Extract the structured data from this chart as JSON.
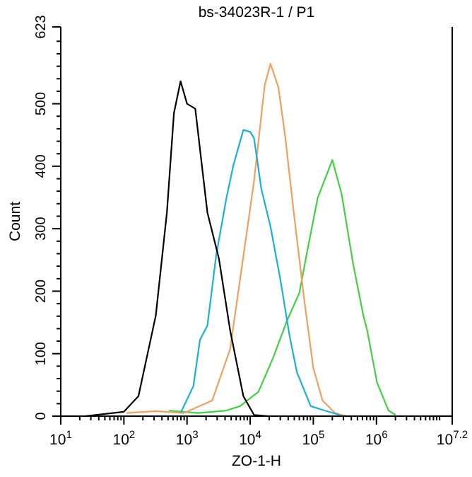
{
  "chart_data": {
    "type": "line",
    "title": "bs-34023R-1 / P1",
    "xlabel": "ZO-1-H",
    "ylabel": "Count",
    "log": "x",
    "grid": false,
    "legend": false,
    "marker": "none",
    "line_style": "solid",
    "xlim": [
      10,
      15848932
    ],
    "ylim": [
      0,
      623
    ],
    "xticks": [
      {
        "value": 10,
        "label": "10$^{1}$"
      },
      {
        "value": 20,
        "label": null
      },
      {
        "value": 30,
        "label": null
      },
      {
        "value": 40,
        "label": null
      },
      {
        "value": 50,
        "label": null
      },
      {
        "value": 60,
        "label": null
      },
      {
        "value": 70,
        "label": null
      },
      {
        "value": 80,
        "label": null
      },
      {
        "value": 90,
        "label": null
      },
      {
        "value": 100,
        "label": "10$^{2}$"
      },
      {
        "value": 200,
        "label": null
      },
      {
        "value": 300,
        "label": null
      },
      {
        "value": 400,
        "label": null
      },
      {
        "value": 500,
        "label": null
      },
      {
        "value": 600,
        "label": null
      },
      {
        "value": 700,
        "label": null
      },
      {
        "value": 800,
        "label": null
      },
      {
        "value": 900,
        "label": null
      },
      {
        "value": 1000,
        "label": "10$^{3}$"
      },
      {
        "value": 2000,
        "label": null
      },
      {
        "value": 3000,
        "label": null
      },
      {
        "value": 4000,
        "label": null
      },
      {
        "value": 5000,
        "label": null
      },
      {
        "value": 6000,
        "label": null
      },
      {
        "value": 7000,
        "label": null
      },
      {
        "value": 8000,
        "label": null
      },
      {
        "value": 9000,
        "label": null
      },
      {
        "value": 10000,
        "label": "10$^{4}$"
      },
      {
        "value": 20000,
        "label": null
      },
      {
        "value": 30000,
        "label": null
      },
      {
        "value": 40000,
        "label": null
      },
      {
        "value": 50000,
        "label": null
      },
      {
        "value": 60000,
        "label": null
      },
      {
        "value": 70000,
        "label": null
      },
      {
        "value": 80000,
        "label": null
      },
      {
        "value": 90000,
        "label": null
      },
      {
        "value": 100000,
        "label": "10$^{5}$"
      },
      {
        "value": 200000,
        "label": null
      },
      {
        "value": 300000,
        "label": null
      },
      {
        "value": 400000,
        "label": null
      },
      {
        "value": 500000,
        "label": null
      },
      {
        "value": 600000,
        "label": null
      },
      {
        "value": 700000,
        "label": null
      },
      {
        "value": 800000,
        "label": null
      },
      {
        "value": 900000,
        "label": null
      },
      {
        "value": 1000000,
        "label": "10$^{6}$"
      },
      {
        "value": 2000000,
        "label": null
      },
      {
        "value": 3000000,
        "label": null
      },
      {
        "value": 4000000,
        "label": null
      },
      {
        "value": 5000000,
        "label": null
      },
      {
        "value": 6000000,
        "label": null
      },
      {
        "value": 7000000,
        "label": null
      },
      {
        "value": 8000000,
        "label": null
      },
      {
        "value": 9000000,
        "label": null
      },
      {
        "value": 10000000,
        "label": null
      },
      {
        "value": 15848932,
        "label": "10$^{7.2}$"
      }
    ],
    "yticks": [
      0,
      {
        "value": 20,
        "label": null
      },
      {
        "value": 40,
        "label": null
      },
      {
        "value": 60,
        "label": null
      },
      {
        "value": 80,
        "label": null
      },
      100,
      {
        "value": 120,
        "label": null
      },
      {
        "value": 140,
        "label": null
      },
      {
        "value": 160,
        "label": null
      },
      {
        "value": 180,
        "label": null
      },
      200,
      {
        "value": 220,
        "label": null
      },
      {
        "value": 240,
        "label": null
      },
      {
        "value": 260,
        "label": null
      },
      {
        "value": 280,
        "label": null
      },
      300,
      {
        "value": 320,
        "label": null
      },
      {
        "value": 340,
        "label": null
      },
      {
        "value": 360,
        "label": null
      },
      {
        "value": 380,
        "label": null
      },
      400,
      {
        "value": 420,
        "label": null
      },
      {
        "value": 440,
        "label": null
      },
      {
        "value": 460,
        "label": null
      },
      {
        "value": 480,
        "label": null
      },
      500,
      {
        "value": 520,
        "label": null
      },
      {
        "value": 540,
        "label": null
      },
      {
        "value": 560,
        "label": null
      },
      {
        "value": 580,
        "label": null
      },
      {
        "value": 600,
        "label": null
      },
      623
    ],
    "series": [
      {
        "color": "#000000",
        "x": [
          24,
          100,
          170,
          320,
          480,
          620,
          790,
          1000,
          1350,
          2100,
          3200,
          4800,
          7800,
          11500,
          19500
        ],
        "values": [
          0,
          7,
          32,
          161,
          326,
          485,
          536,
          500,
          492,
          326,
          252,
          138,
          32,
          2,
          0
        ]
      },
      {
        "color": "#1ab0d8",
        "x": [
          790,
          1260,
          1600,
          2100,
          2900,
          4200,
          5400,
          7800,
          10000,
          11500,
          15000,
          21000,
          30000,
          42000,
          55000,
          91000,
          150000,
          260000
        ],
        "values": [
          5,
          48,
          122,
          145,
          258,
          349,
          401,
          458,
          455,
          445,
          364,
          303,
          219,
          129,
          70,
          16,
          9,
          2
        ]
      },
      {
        "color": "#f0a060",
        "x": [
          110,
          320,
          890,
          2500,
          4800,
          7800,
          11500,
          17000,
          21000,
          28000,
          36000,
          49000,
          71000,
          100000,
          140000,
          220000,
          330000
        ],
        "values": [
          5,
          8,
          5,
          25,
          107,
          256,
          376,
          530,
          564,
          526,
          446,
          326,
          190,
          77,
          25,
          5,
          0
        ]
      },
      {
        "color": "#44d044",
        "x": [
          520,
          1500,
          4200,
          6900,
          13500,
          23000,
          38000,
          60000,
          78000,
          117000,
          200000,
          280000,
          430000,
          620000,
          710000,
          1020000,
          1550000,
          2000000
        ],
        "values": [
          9,
          5,
          9,
          16,
          39,
          93,
          152,
          197,
          258,
          349,
          410,
          356,
          242,
          161,
          138,
          54,
          9,
          2
        ]
      }
    ]
  }
}
